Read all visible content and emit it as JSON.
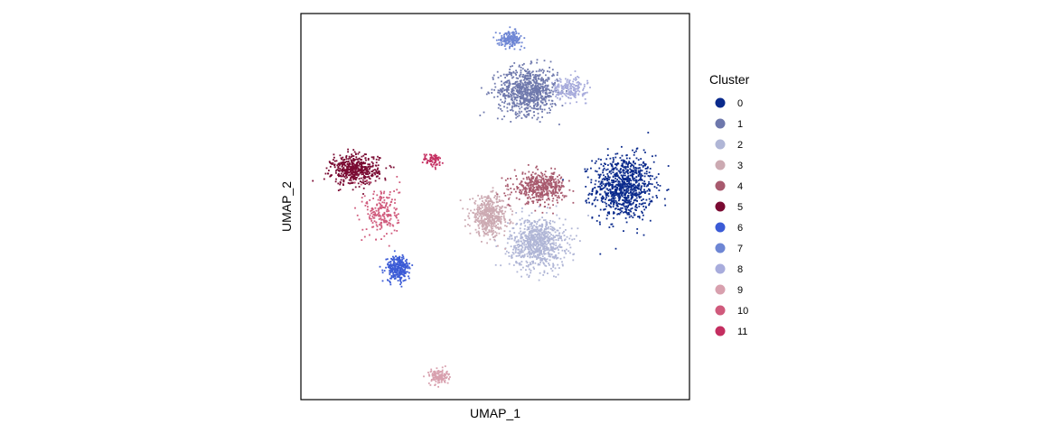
{
  "chart_data": {
    "type": "scatter",
    "title": "",
    "xlabel": "UMAP_1",
    "ylabel": "UMAP_2",
    "xlim": [
      -10,
      10
    ],
    "ylim": [
      -10,
      10
    ],
    "grid": false,
    "legend": {
      "title": "Cluster",
      "position": "right"
    },
    "series": [
      {
        "name": "0",
        "color": "#0a2a8c",
        "center": [
          6.6,
          1.0
        ],
        "spread": [
          1.4,
          1.5
        ],
        "points": 900
      },
      {
        "name": "1",
        "color": "#6e78ac",
        "center": [
          1.7,
          6.0
        ],
        "spread": [
          1.4,
          1.1
        ],
        "points": 800
      },
      {
        "name": "2",
        "color": "#b0b6d6",
        "center": [
          2.2,
          -1.9
        ],
        "spread": [
          1.3,
          1.2
        ],
        "points": 800
      },
      {
        "name": "3",
        "color": "#ccaab2",
        "center": [
          -0.3,
          -0.5
        ],
        "spread": [
          0.9,
          0.9
        ],
        "points": 500
      },
      {
        "name": "4",
        "color": "#a85a6e",
        "center": [
          2.3,
          1.0
        ],
        "spread": [
          1.2,
          0.7
        ],
        "points": 450
      },
      {
        "name": "5",
        "color": "#7a0a32",
        "center": [
          -7.2,
          1.9
        ],
        "spread": [
          1.1,
          0.7
        ],
        "points": 500
      },
      {
        "name": "6",
        "color": "#3b5bd6",
        "center": [
          -5.0,
          -3.2
        ],
        "spread": [
          0.55,
          0.6
        ],
        "points": 280
      },
      {
        "name": "7",
        "color": "#6e86d4",
        "center": [
          0.8,
          8.7
        ],
        "spread": [
          0.55,
          0.35
        ],
        "points": 180
      },
      {
        "name": "8",
        "color": "#a8acdc",
        "center": [
          3.8,
          6.1
        ],
        "spread": [
          0.8,
          0.5
        ],
        "points": 200
      },
      {
        "name": "9",
        "color": "#d8a0ae",
        "center": [
          -2.9,
          -8.8
        ],
        "spread": [
          0.45,
          0.35
        ],
        "points": 130
      },
      {
        "name": "10",
        "color": "#d05a7c",
        "center": [
          -5.8,
          -0.3
        ],
        "spread": [
          0.8,
          1.3
        ],
        "points": 200
      },
      {
        "name": "11",
        "color": "#c42e60",
        "center": [
          -3.2,
          2.4
        ],
        "spread": [
          0.45,
          0.35
        ],
        "points": 70
      }
    ]
  }
}
